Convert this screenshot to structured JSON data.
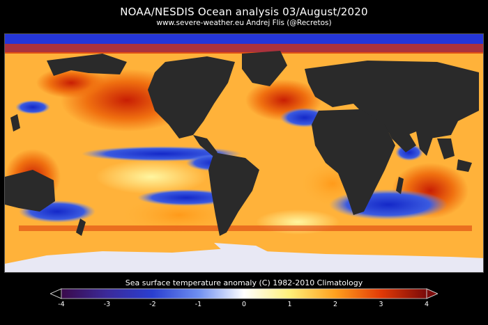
{
  "header": {
    "title": "NOAA/NESDIS Ocean analysis  03/August/2020",
    "subtitle": "www.severe-weather.eu   Andrej Flis (@Recretos)"
  },
  "map": {
    "variable": "Sea surface temperature anomaly",
    "land_color": "#2a2a2a",
    "ice_color": "#e8e8f4"
  },
  "legend": {
    "title": "Sea surface temperature anomaly (C)    1982-2010 Climatology",
    "ticks": [
      "-4",
      "-3",
      "-2",
      "-1",
      "0",
      "1",
      "2",
      "3",
      "4"
    ],
    "range": [
      -4,
      4
    ],
    "colors": [
      "#3a0a4a",
      "#3b2a9a",
      "#2a3fd0",
      "#6e8ef0",
      "#ffffff",
      "#fff07a",
      "#ffa01e",
      "#e23a06",
      "#7a0a0a"
    ]
  }
}
